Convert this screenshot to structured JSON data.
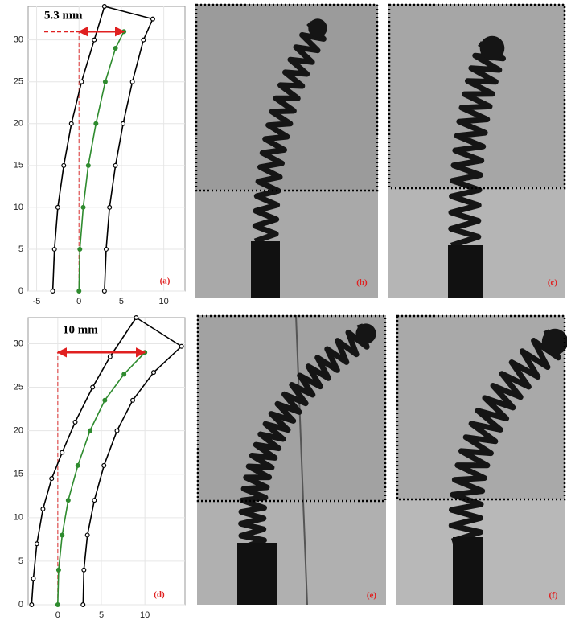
{
  "chart_data": [
    {
      "type": "line",
      "annotation": "5.3 mm",
      "panel_label": "(a)",
      "xlim": [
        -6,
        12.5
      ],
      "ylim": [
        0,
        34
      ],
      "xticks": [
        -5,
        0,
        5,
        10
      ],
      "yticks": [
        0,
        5,
        10,
        15,
        20,
        25,
        30
      ],
      "grid": true,
      "series": [
        {
          "color": "#000000",
          "x": [
            -3.1,
            -2.9,
            -2.5,
            -1.8,
            -0.9,
            0.3,
            1.8,
            3.0
          ],
          "values": [
            0,
            5,
            10,
            15,
            20,
            25,
            30,
            34
          ]
        },
        {
          "color": "#2e8b2e",
          "x": [
            0,
            0.1,
            0.5,
            1.1,
            2.0,
            3.1,
            4.3,
            5.3
          ],
          "values": [
            0,
            5,
            10,
            15,
            20,
            25,
            29,
            31
          ]
        },
        {
          "color": "#000000",
          "x": [
            3.0,
            3.2,
            3.6,
            4.3,
            5.2,
            6.3,
            7.6,
            8.7
          ],
          "values": [
            0,
            5,
            10,
            15,
            20,
            25,
            30,
            32.5
          ]
        }
      ]
    },
    {
      "type": "line",
      "annotation": "10 mm",
      "panel_label": "(d)",
      "xlim": [
        -3.4,
        14.6
      ],
      "ylim": [
        0,
        33
      ],
      "xticks": [
        0,
        5,
        10
      ],
      "yticks": [
        0,
        5,
        10,
        15,
        20,
        25,
        30
      ],
      "grid": true,
      "series": [
        {
          "color": "#000000",
          "x": [
            -3.0,
            -2.8,
            -2.4,
            -1.7,
            -0.7,
            0.5,
            2.0,
            4.0,
            6.0,
            9.0
          ],
          "values": [
            0,
            3,
            7,
            11,
            14.5,
            17.5,
            21,
            25,
            28.5,
            33
          ]
        },
        {
          "color": "#2e8b2e",
          "x": [
            0,
            0.1,
            0.5,
            1.2,
            2.3,
            3.7,
            5.4,
            7.6,
            10.0
          ],
          "values": [
            0,
            4,
            8,
            12,
            16,
            20,
            23.5,
            26.5,
            29
          ]
        },
        {
          "color": "#000000",
          "x": [
            2.9,
            3.0,
            3.4,
            4.2,
            5.3,
            6.8,
            8.6,
            11.0,
            14.2
          ],
          "values": [
            0,
            4,
            8,
            12,
            16,
            20,
            23.5,
            26.7,
            29.7
          ]
        }
      ]
    }
  ],
  "images": [
    {
      "label": "(b)"
    },
    {
      "label": "(c)"
    },
    {
      "label": "(e)"
    },
    {
      "label": "(f)"
    }
  ]
}
